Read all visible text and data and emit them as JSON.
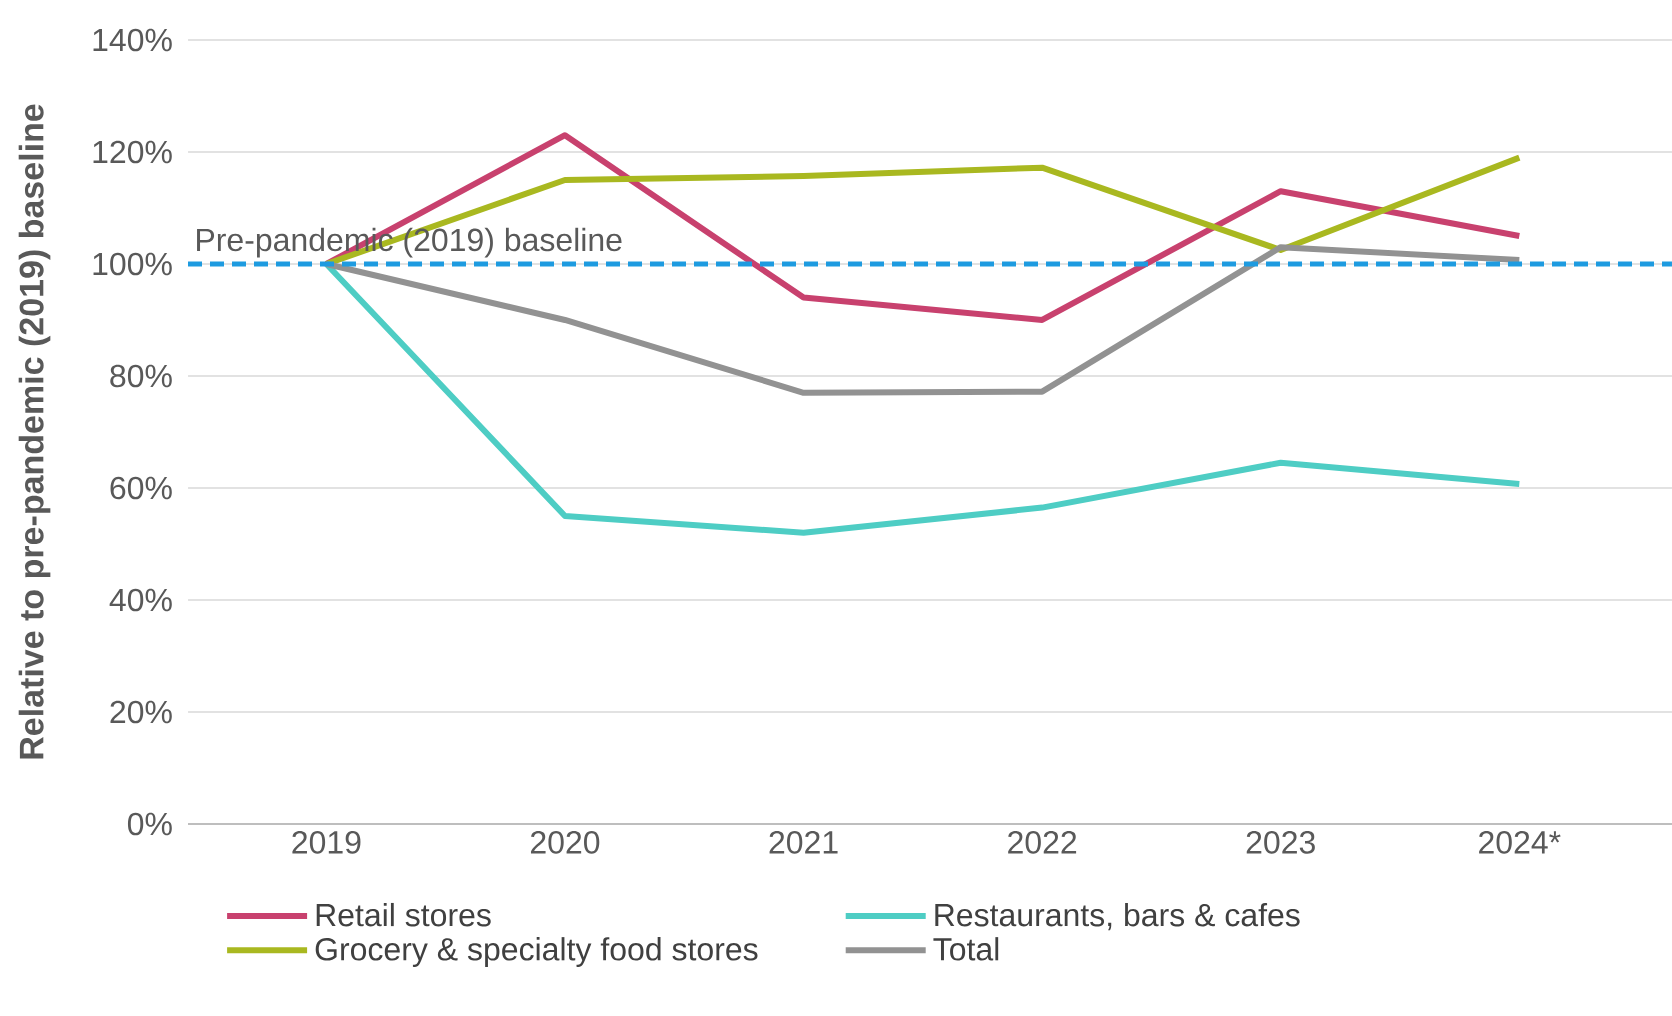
{
  "chart_data": {
    "type": "line",
    "ylabel": "Relative to pre-pandemic (2019) baseline",
    "categories": [
      "2019",
      "2020",
      "2021",
      "2022",
      "2023",
      "2024*"
    ],
    "series": [
      {
        "name": "Retail stores",
        "color": "#c8416e",
        "values": [
          100,
          123,
          94,
          90,
          113,
          105
        ]
      },
      {
        "name": "Restaurants, bars & cafes",
        "color": "#4ecdc4",
        "values": [
          100,
          55,
          52,
          56.5,
          64.5,
          60.7
        ]
      },
      {
        "name": "Grocery & specialty food stores",
        "color": "#a9b820",
        "values": [
          100,
          115,
          115.7,
          117.2,
          102.5,
          119
        ]
      },
      {
        "name": "Total",
        "color": "#929292",
        "values": [
          100,
          90,
          77,
          77.2,
          103,
          100.7
        ]
      }
    ],
    "ylim": [
      0,
      140
    ],
    "yticks": [
      {
        "value": 0,
        "label": "0%"
      },
      {
        "value": 20,
        "label": "20%"
      },
      {
        "value": 40,
        "label": "40%"
      },
      {
        "value": 60,
        "label": "60%"
      },
      {
        "value": 80,
        "label": "80%"
      },
      {
        "value": 100,
        "label": "100%"
      },
      {
        "value": 120,
        "label": "120%"
      },
      {
        "value": 140,
        "label": "140%"
      }
    ],
    "ref_lines": [
      {
        "axis": "y",
        "value": 100,
        "label": "Pre-pandemic (2019) baseline",
        "color": "#1e9be0",
        "line_style": "dashed"
      }
    ],
    "grid": "y",
    "legend": "bottom",
    "marker": "none",
    "line_style": "solid"
  }
}
